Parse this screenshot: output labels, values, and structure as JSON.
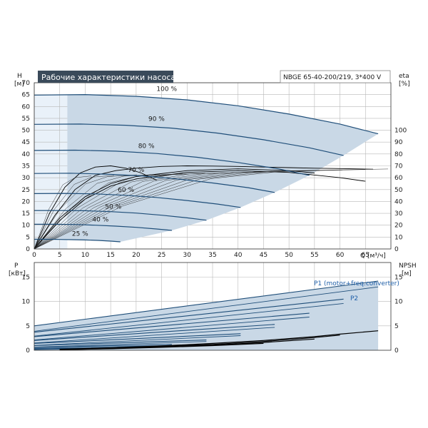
{
  "colors": {
    "curve": "#1f4e79",
    "area_fill": "#c9d8e6",
    "light_band": "#e9f1f9",
    "grid": "#b8b8b8",
    "axis": "#333333",
    "title_bg": "#3a4a5a",
    "title_text": "#ffffff",
    "eta_curve": "#000000",
    "npsh_curve": "#000000"
  },
  "chart_data": [
    {
      "type": "line",
      "title": "Рабочие характеристики насоса",
      "model_label": "NBGE 65-40-200/219, 3*400 V",
      "ylabel_left": "H",
      "ylabel_left_unit": "[м]",
      "ylabel_right": "eta",
      "ylabel_right_unit": "[%]",
      "xlabel": "Q",
      "xlabel_unit": "[м³/ч]",
      "xlim": [
        0,
        70
      ],
      "ylim": [
        0,
        70
      ],
      "ylim_right": [
        0,
        140
      ],
      "x_ticks": [
        "0",
        "5",
        "10",
        "15",
        "20",
        "25",
        "30",
        "35",
        "40",
        "45",
        "50",
        "55",
        "60",
        "65"
      ],
      "y_ticks": [
        "0",
        "5",
        "10",
        "15",
        "20",
        "25",
        "30",
        "35",
        "40",
        "45",
        "50",
        "55",
        "60",
        "65",
        "70"
      ],
      "y_right_ticks": [
        "0",
        "10",
        "20",
        "30",
        "40",
        "50",
        "60",
        "70",
        "80",
        "90",
        "100"
      ],
      "grid": true,
      "speed_curves": [
        {
          "label": "100 %",
          "label_at": [
            26,
            66.5
          ],
          "x": [
            0,
            10,
            20,
            30,
            40,
            50,
            60,
            67.5
          ],
          "y": [
            64.8,
            65,
            64.3,
            62.8,
            60.3,
            56.8,
            52.6,
            48.5
          ]
        },
        {
          "label": "90 %",
          "label_at": [
            24,
            54
          ],
          "x": [
            0,
            9,
            18,
            27,
            36,
            45,
            54,
            60.7
          ],
          "y": [
            52.5,
            52.6,
            52.1,
            50.9,
            48.8,
            46.0,
            42.6,
            39.4
          ]
        },
        {
          "label": "80 %",
          "label_at": [
            22,
            42.5
          ],
          "x": [
            0,
            8,
            16,
            24,
            32,
            40,
            48,
            54
          ],
          "y": [
            41.5,
            41.6,
            41.2,
            40.2,
            38.6,
            36.4,
            33.7,
            31.0
          ]
        },
        {
          "label": "70 %",
          "label_at": [
            20,
            32.5
          ],
          "x": [
            0,
            7,
            14,
            21,
            28,
            35,
            42,
            47.2
          ],
          "y": [
            31.8,
            31.9,
            31.5,
            30.8,
            29.5,
            27.8,
            25.8,
            23.8
          ]
        },
        {
          "label": "60 %",
          "label_at": [
            18,
            24
          ],
          "x": [
            0,
            6,
            12,
            18,
            24,
            30,
            36,
            40.5
          ],
          "y": [
            23.3,
            23.4,
            23.2,
            22.6,
            21.7,
            20.4,
            18.9,
            17.5
          ]
        },
        {
          "label": "50 %",
          "label_at": [
            15.5,
            17
          ],
          "x": [
            0,
            5,
            10,
            15,
            20,
            25,
            30,
            33.8
          ],
          "y": [
            16.2,
            16.2,
            16.1,
            15.7,
            15.1,
            14.2,
            13.1,
            12.1
          ]
        },
        {
          "label": "40 %",
          "label_at": [
            13,
            11.5
          ],
          "x": [
            0,
            4,
            8,
            12,
            16,
            20,
            24,
            27
          ],
          "y": [
            10.4,
            10.4,
            10.3,
            10.0,
            9.6,
            9.1,
            8.4,
            7.8
          ]
        },
        {
          "label": "25 %",
          "label_at": [
            9,
            5.5
          ],
          "x": [
            0,
            2.5,
            5,
            7.5,
            10,
            12.5,
            15,
            16.9
          ],
          "y": [
            4.1,
            4.1,
            4.0,
            3.9,
            3.8,
            3.6,
            3.3,
            3.0
          ]
        }
      ],
      "efficiency_curves_eta_percent": [
        {
          "x": [
            0,
            5,
            10,
            15,
            20,
            30,
            40,
            50,
            60,
            65
          ],
          "y": [
            0,
            24,
            42,
            53,
            59,
            64.5,
            66,
            64.5,
            60,
            57
          ]
        },
        {
          "x": [
            0,
            5,
            10,
            15,
            20,
            30,
            40,
            50,
            55
          ],
          "y": [
            0,
            26,
            44,
            55,
            61,
            66,
            67.5,
            66,
            64
          ]
        },
        {
          "x": [
            0,
            4,
            8,
            12,
            16,
            20,
            25,
            30,
            35,
            40,
            45,
            50,
            55,
            60,
            66.5
          ],
          "y": [
            0,
            28,
            50,
            62,
            66,
            68,
            69.5,
            70,
            69.8,
            69.5,
            69,
            68.5,
            68,
            67.7,
            67.2
          ]
        },
        {
          "x": [
            0,
            3,
            6,
            9,
            12,
            15,
            18,
            21,
            24
          ],
          "y": [
            0,
            30,
            52,
            64,
            69,
            70,
            68,
            64,
            58
          ]
        }
      ]
    },
    {
      "type": "line",
      "ylabel_left": "P",
      "ylabel_left_unit": "[кВт]",
      "ylabel_right": "NPSH",
      "ylabel_right_unit": "[м]",
      "xlim": [
        0,
        70
      ],
      "ylim": [
        0,
        18
      ],
      "x_ticks": [
        "0",
        "5",
        "10",
        "15",
        "20",
        "25",
        "30",
        "35",
        "40",
        "45",
        "50",
        "55",
        "60",
        "65"
      ],
      "y_ticks": [
        "0",
        "5",
        "10",
        "15"
      ],
      "y_right_ticks": [
        "0",
        "5",
        "10",
        "15"
      ],
      "grid": true,
      "series_labels": [
        "P1 (motor+freq.converter)",
        "P2"
      ],
      "p1_curves": [
        {
          "x": [
            0,
            67.5
          ],
          "y": [
            5.0,
            14.2
          ]
        },
        {
          "x": [
            0,
            60.7
          ],
          "y": [
            3.7,
            10.5
          ]
        },
        {
          "x": [
            0,
            54
          ],
          "y": [
            2.8,
            7.6
          ]
        },
        {
          "x": [
            0,
            47.2
          ],
          "y": [
            2.0,
            5.3
          ]
        },
        {
          "x": [
            0,
            40.5
          ],
          "y": [
            1.4,
            3.4
          ]
        },
        {
          "x": [
            0,
            33.8
          ],
          "y": [
            0.95,
            2.1
          ]
        },
        {
          "x": [
            0,
            27
          ],
          "y": [
            0.6,
            1.2
          ]
        },
        {
          "x": [
            0,
            16.9
          ],
          "y": [
            0.3,
            0.5
          ]
        }
      ],
      "p2_curves": [
        {
          "x": [
            0,
            67.5
          ],
          "y": [
            3.9,
            13.0
          ]
        },
        {
          "x": [
            0,
            60.7
          ],
          "y": [
            2.9,
            9.6
          ]
        },
        {
          "x": [
            0,
            54
          ],
          "y": [
            2.1,
            6.8
          ]
        },
        {
          "x": [
            0,
            47.2
          ],
          "y": [
            1.5,
            4.7
          ]
        },
        {
          "x": [
            0,
            40.5
          ],
          "y": [
            1.0,
            3.0
          ]
        },
        {
          "x": [
            0,
            33.8
          ],
          "y": [
            0.65,
            1.8
          ]
        },
        {
          "x": [
            0,
            27
          ],
          "y": [
            0.4,
            0.95
          ]
        },
        {
          "x": [
            0,
            16.9
          ],
          "y": [
            0.15,
            0.35
          ]
        }
      ],
      "npsh_curves": [
        {
          "x": [
            5,
            15,
            25,
            35,
            45,
            55,
            60,
            67.5
          ],
          "y": [
            0.2,
            0.5,
            0.9,
            1.4,
            2.0,
            2.8,
            3.3,
            4.0
          ]
        },
        {
          "x": [
            5,
            15,
            25,
            35,
            45,
            55,
            60
          ],
          "y": [
            0.15,
            0.45,
            0.8,
            1.2,
            1.8,
            2.6,
            3.1
          ]
        },
        {
          "x": [
            5,
            15,
            25,
            35,
            45,
            55
          ],
          "y": [
            0.1,
            0.35,
            0.7,
            1.05,
            1.6,
            2.3
          ]
        },
        {
          "x": [
            5,
            15,
            25,
            35,
            45
          ],
          "y": [
            0.1,
            0.3,
            0.6,
            0.95,
            1.4
          ]
        }
      ]
    }
  ]
}
